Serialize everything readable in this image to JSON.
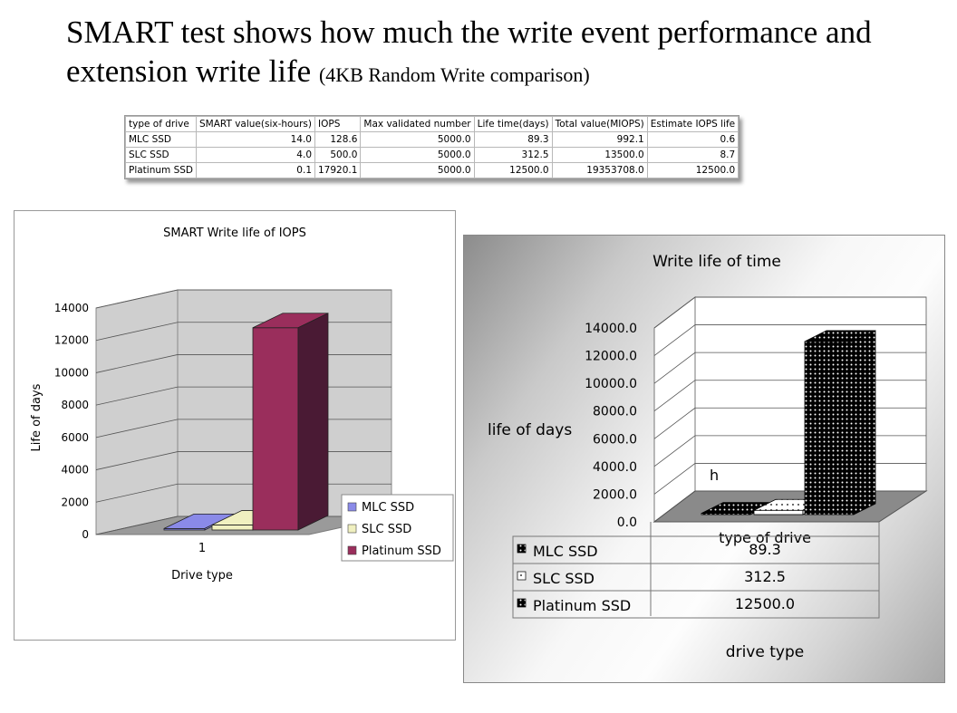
{
  "title": {
    "main": "SMART test shows how much the write event performance and extension write life",
    "sub": "(4KB Random Write comparison)"
  },
  "table": {
    "headers": [
      "type of drive",
      "SMART value(six-hours)",
      "IOPS",
      "Max validated number",
      "Life time(days)",
      "Total value(MIOPS)",
      "Estimate IOPS life"
    ],
    "rows": [
      [
        "MLC SSD",
        "14.0",
        "128.6",
        "5000.0",
        "89.3",
        "992.1",
        "0.6"
      ],
      [
        "SLC SSD",
        "4.0",
        "500.0",
        "5000.0",
        "312.5",
        "13500.0",
        "8.7"
      ],
      [
        "Platinum SSD",
        "0.1",
        "17920.1",
        "5000.0",
        "12500.0",
        "19353708.0",
        "12500.0"
      ]
    ]
  },
  "chart_data": [
    {
      "type": "bar",
      "title": "SMART Write life of IOPS",
      "xlabel": "Drive type",
      "ylabel": "Life of days",
      "categories": [
        "1"
      ],
      "ylim": [
        0,
        14000
      ],
      "yticks": [
        "0",
        "2000",
        "4000",
        "6000",
        "8000",
        "10000",
        "12000",
        "14000"
      ],
      "series": [
        {
          "name": "MLC SSD",
          "values": [
            89.3
          ],
          "color": "#8a8ae8"
        },
        {
          "name": "SLC SSD",
          "values": [
            312.5
          ],
          "color": "#f0f0c0"
        },
        {
          "name": "Platinum SSD",
          "values": [
            12500.0
          ],
          "color": "#9a2e5c"
        }
      ],
      "legend": "right",
      "grid": true
    },
    {
      "type": "bar",
      "title": "Write life of time",
      "xlabel": "type of drive",
      "ylabel": "life of days",
      "footer": "drive type",
      "annotation": "h",
      "ylim": [
        0,
        14000
      ],
      "yticks": [
        "0.0",
        "2000.0",
        "4000.0",
        "6000.0",
        "8000.0",
        "10000.0",
        "12000.0",
        "14000.0"
      ],
      "series": [
        {
          "name": "MLC SSD",
          "values": [
            89.3
          ],
          "value_label": "89.3"
        },
        {
          "name": "SLC SSD",
          "values": [
            312.5
          ],
          "value_label": "312.5"
        },
        {
          "name": "Platinum SSD",
          "values": [
            12500.0
          ],
          "value_label": "12500.0"
        }
      ],
      "grid": true
    }
  ]
}
